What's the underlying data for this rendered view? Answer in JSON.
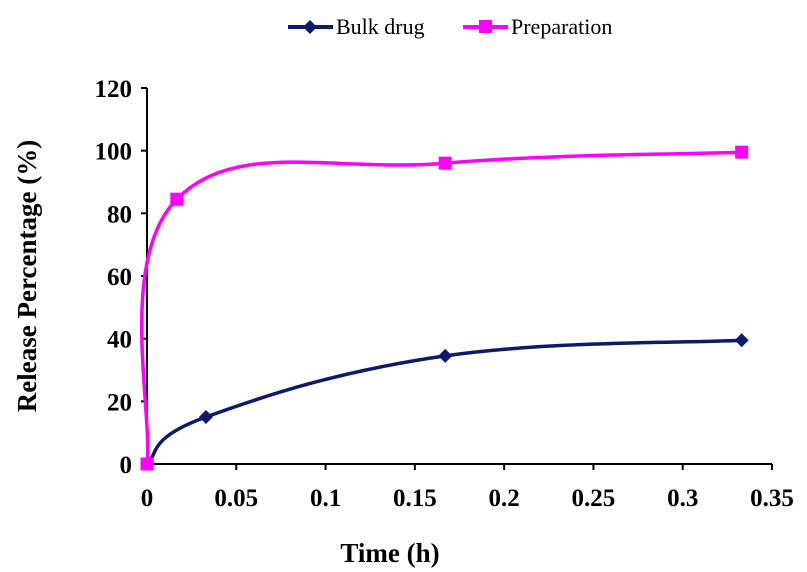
{
  "chart_data": {
    "type": "line",
    "xlabel": "Time (h)",
    "ylabel": "Release Percentage (%)",
    "xlim": [
      0,
      0.35
    ],
    "ylim": [
      0,
      120
    ],
    "x_ticks": [
      "0",
      "0.05",
      "0.1",
      "0.15",
      "0.2",
      "0.25",
      "0.3",
      "0.35"
    ],
    "y_ticks": [
      "0",
      "20",
      "40",
      "60",
      "80",
      "100",
      "120"
    ],
    "grid": false,
    "legend_position": "top-center",
    "series": [
      {
        "name": "Bulk drug",
        "color": "#0d1a6b",
        "marker": "diamond",
        "x": [
          0,
          0.033,
          0.167,
          0.333
        ],
        "y": [
          0,
          15,
          34.5,
          39.5
        ]
      },
      {
        "name": "Preparation",
        "color": "#ff00ff",
        "marker": "square",
        "x": [
          0,
          0.0167,
          0.167,
          0.333
        ],
        "y": [
          0,
          84.5,
          96,
          99.5
        ]
      }
    ]
  }
}
